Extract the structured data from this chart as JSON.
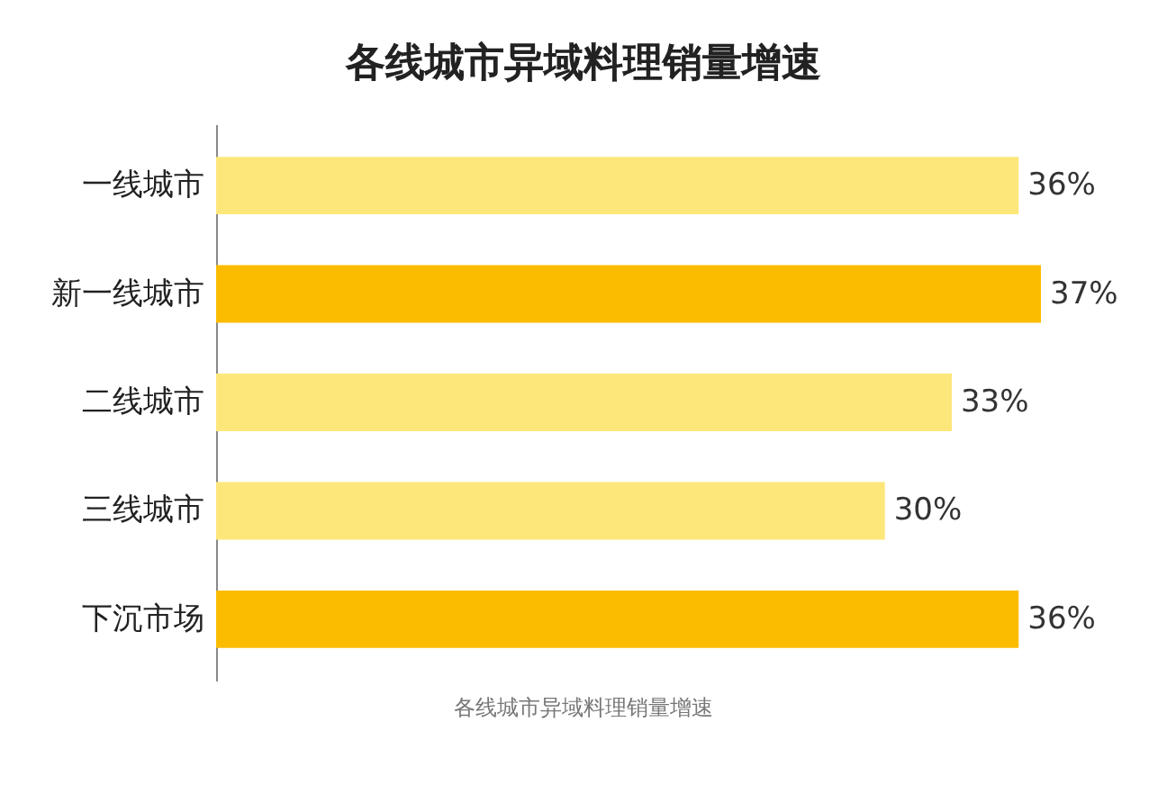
{
  "chart_data": {
    "type": "bar",
    "orientation": "horizontal",
    "title": "各线城市异域料理销量增速",
    "categories": [
      "一线城市",
      "新一线城市",
      "二线城市",
      "三线城市",
      "下沉市场"
    ],
    "values": [
      36,
      37,
      33,
      30,
      36
    ],
    "colors": [
      "#fde77a",
      "#fbbc00",
      "#fde77a",
      "#fde77a",
      "#fbbc00"
    ],
    "value_labels": [
      "36%",
      "37%",
      "33%",
      "30%",
      "36%"
    ],
    "tick_labels": "y",
    "annotations": [
      "各线城市异域料理销量增速"
    ]
  }
}
